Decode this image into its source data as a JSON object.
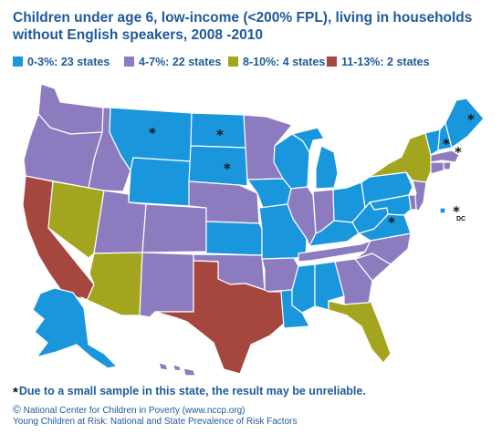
{
  "title": "Children under age 6, low-income (<200% FPL), living in households without English speakers, 2008 -2010",
  "legend": [
    {
      "label": "0-3%: 23 states",
      "color": "#1a97dc"
    },
    {
      "label": "4-7%: 22 states",
      "color": "#8c7bbf"
    },
    {
      "label": "8-10%: 4 states",
      "color": "#a3a51f"
    },
    {
      "label": "11-13%: 2 states",
      "color": "#a5463f"
    }
  ],
  "states": {
    "WA": "4-7%",
    "OR": "4-7%",
    "CA": "11-13%",
    "NV": "8-10%",
    "ID": "4-7%",
    "MT": "0-3%",
    "WY": "0-3%",
    "UT": "4-7%",
    "AZ": "8-10%",
    "CO": "4-7%",
    "NM": "4-7%",
    "ND": "0-3%",
    "SD": "0-3%",
    "NE": "4-7%",
    "KS": "0-3%",
    "OK": "4-7%",
    "TX": "11-13%",
    "MN": "4-7%",
    "IA": "0-3%",
    "MO": "0-3%",
    "AR": "4-7%",
    "LA": "0-3%",
    "WI": "0-3%",
    "IL": "4-7%",
    "MI": "0-3%",
    "IN": "4-7%",
    "OH": "0-3%",
    "KY": "0-3%",
    "TN": "4-7%",
    "MS": "0-3%",
    "AL": "0-3%",
    "GA": "4-7%",
    "FL": "8-10%",
    "SC": "4-7%",
    "NC": "4-7%",
    "VA": "0-3%",
    "WV": "0-3%",
    "PA": "0-3%",
    "NY": "8-10%",
    "VT": "0-3%",
    "NH": "0-3%",
    "ME": "0-3%",
    "MA": "4-7%",
    "RI": "4-7%",
    "CT": "4-7%",
    "NJ": "4-7%",
    "DE": "4-7%",
    "MD": "0-3%",
    "DC": "0-3%",
    "AK": "0-3%",
    "HI": "4-7%"
  },
  "unreliable_marker": "*",
  "unreliable_states": [
    "MT",
    "ND",
    "SD",
    "WV",
    "VT",
    "NH",
    "ME",
    "DC"
  ],
  "dc_label": "DC",
  "footnote": "Due to a small sample in this state, the result may be unreliable.",
  "credit": {
    "symbol": "©",
    "line1": "National Center for Children in Poverty (www.nccp.org)",
    "line2": "Young Children at Risk: National and State Prevalence of Risk Factors"
  }
}
